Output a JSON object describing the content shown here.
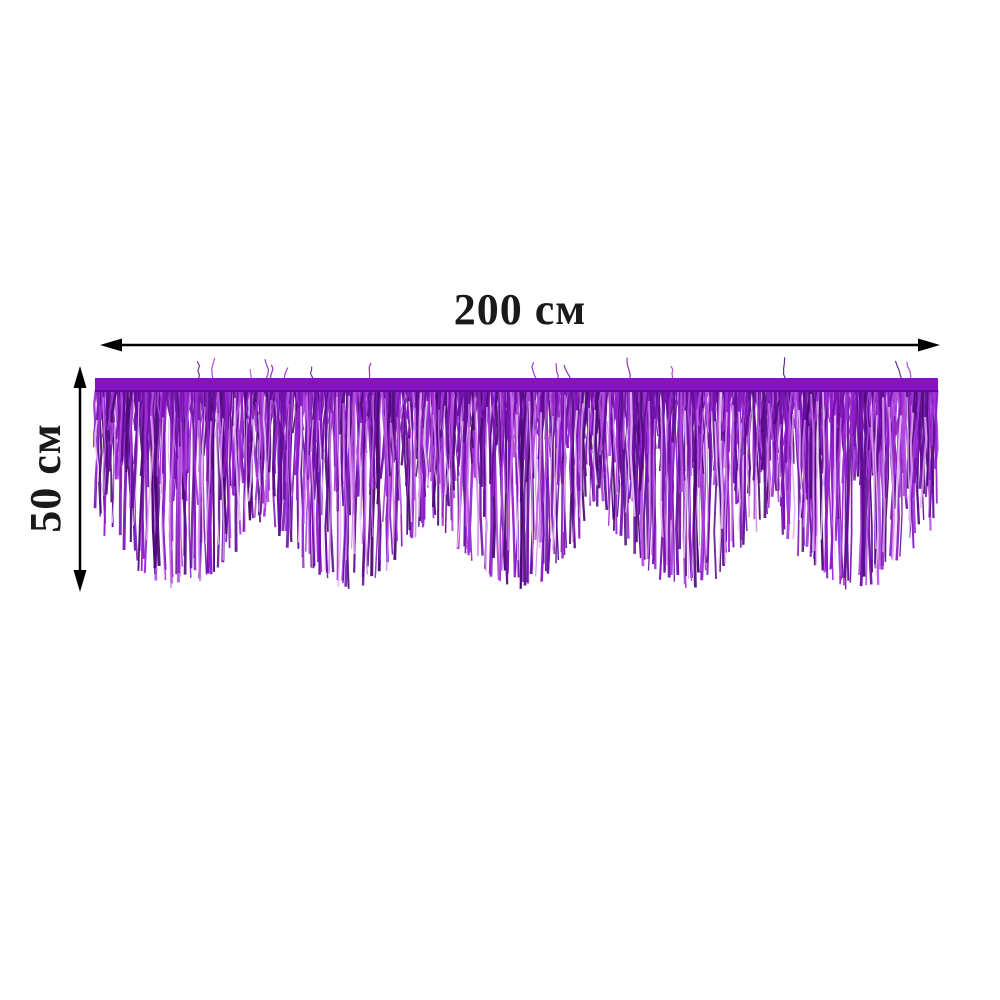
{
  "product": {
    "name": "purple metallic foil fringe garland",
    "description": "scalloped tinsel fringe banner"
  },
  "dimensions": {
    "width_label": "200 см",
    "height_label": "50 см"
  },
  "annotation": {
    "arrow_color": "#000000"
  },
  "garland": {
    "scallops": 5,
    "bar_color": "#8612c6",
    "bar_edge_color": "#5c0a92",
    "strand_colors": [
      "#4b0a74",
      "#5e0c92",
      "#7a11b4",
      "#8d1cc9",
      "#9e2fd6",
      "#b24ae0",
      "#6a0fa6"
    ],
    "highlight_colors": [
      "#cf7bec",
      "#e3a6f4",
      "#f3d7fb"
    ]
  }
}
